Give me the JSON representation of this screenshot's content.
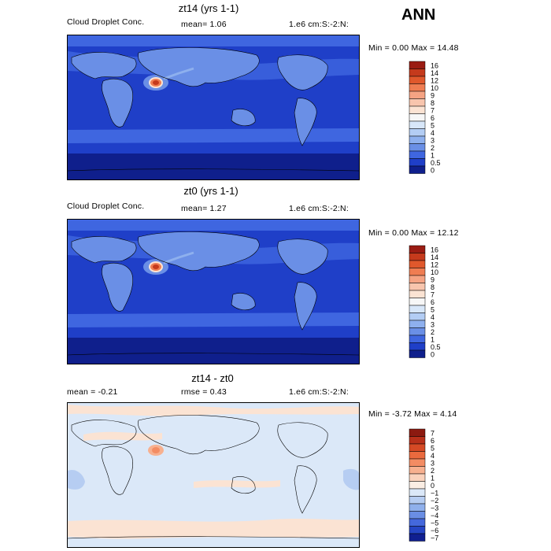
{
  "season": "ANN",
  "panels": [
    {
      "title": "zt14 (yrs 1-1)",
      "left_label": "Cloud Droplet Conc.",
      "mid_label": "mean=   1.06",
      "right_label": "1.e6 cm:S:-2:N:",
      "minmax": "Min =    0.00 Max =   14.48",
      "colorbar": {
        "labels": [
          "16",
          "14",
          "12",
          "10",
          "9",
          "8",
          "7",
          "6",
          "5",
          "4",
          "3",
          "2",
          "1",
          "0.5",
          "0"
        ],
        "colors": [
          "#9a1c13",
          "#c53a1c",
          "#e0582c",
          "#ef7d52",
          "#f5a383",
          "#f8c5ad",
          "#fbe3d3",
          "#f7f7f7",
          "#d8e7f9",
          "#b3cdf4",
          "#8eb0ee",
          "#6a8fe6",
          "#3f66e0",
          "#1f3fc8",
          "#0f1f8c"
        ]
      }
    },
    {
      "title": "zt0 (yrs 1-1)",
      "left_label": "Cloud Droplet Conc.",
      "mid_label": "mean=   1.27",
      "right_label": "1.e6 cm:S:-2:N:",
      "minmax": "Min =    0.00 Max =   12.12",
      "colorbar": {
        "labels": [
          "16",
          "14",
          "12",
          "10",
          "9",
          "8",
          "7",
          "6",
          "5",
          "4",
          "3",
          "2",
          "1",
          "0.5",
          "0"
        ],
        "colors": [
          "#9a1c13",
          "#c53a1c",
          "#e0582c",
          "#ef7d52",
          "#f5a383",
          "#f8c5ad",
          "#fbe3d3",
          "#f7f7f7",
          "#d8e7f9",
          "#b3cdf4",
          "#8eb0ee",
          "#6a8fe6",
          "#3f66e0",
          "#1f3fc8",
          "#0f1f8c"
        ]
      }
    },
    {
      "title": "zt14 - zt0",
      "left_label": "mean =   -0.21",
      "mid_label": "rmse =    0.43",
      "right_label": "1.e6 cm:S:-2:N:",
      "minmax": "Min =  -3.72 Max =   4.14",
      "colorbar": {
        "labels": [
          "7",
          "6",
          "5",
          "4",
          "3",
          "2",
          "1",
          "0",
          "−1",
          "−2",
          "−3",
          "−4",
          "−5",
          "−6",
          "−7"
        ],
        "colors": [
          "#8c1a10",
          "#b8301a",
          "#d64a25",
          "#ea6a3e",
          "#f38c63",
          "#f7b08f",
          "#fad2bc",
          "#fbeee4",
          "#dbe8f8",
          "#b6cdf2",
          "#8fb0ec",
          "#6a8ee4",
          "#4468dc",
          "#2545c4",
          "#101f90"
        ]
      }
    }
  ],
  "chart_data": [
    {
      "type": "heatmap",
      "title": "zt14 (yrs 1-1)",
      "variable": "Cloud Droplet Conc.",
      "units": "1.e6 cm:S:-2:N:",
      "mean": 1.06,
      "min": 0.0,
      "max": 14.48,
      "contour_levels": [
        0,
        0.5,
        1,
        2,
        3,
        4,
        5,
        6,
        7,
        8,
        9,
        10,
        12,
        14,
        16
      ],
      "colors": {
        "ocean_base": "#1f3fc8",
        "land": "#6a8fe6",
        "hotspot": "#e0582c"
      }
    },
    {
      "type": "heatmap",
      "title": "zt0 (yrs 1-1)",
      "variable": "Cloud Droplet Conc.",
      "units": "1.e6 cm:S:-2:N:",
      "mean": 1.27,
      "min": 0.0,
      "max": 12.12,
      "contour_levels": [
        0,
        0.5,
        1,
        2,
        3,
        4,
        5,
        6,
        7,
        8,
        9,
        10,
        12,
        14,
        16
      ],
      "colors": {
        "ocean_base": "#1f3fc8",
        "land": "#6a8fe6",
        "hotspot": "#e0582c"
      }
    },
    {
      "type": "heatmap",
      "title": "zt14 - zt0",
      "units": "1.e6 cm:S:-2:N:",
      "mean": -0.21,
      "rmse": 0.43,
      "min": -3.72,
      "max": 4.14,
      "contour_levels": [
        -7,
        -6,
        -5,
        -4,
        -3,
        -2,
        -1,
        0,
        1,
        2,
        3,
        4,
        5,
        6,
        7
      ],
      "colors": {
        "base": "#dbe8f8",
        "positive": "#fbe3d3",
        "negative": "#b6cdf2"
      }
    }
  ]
}
